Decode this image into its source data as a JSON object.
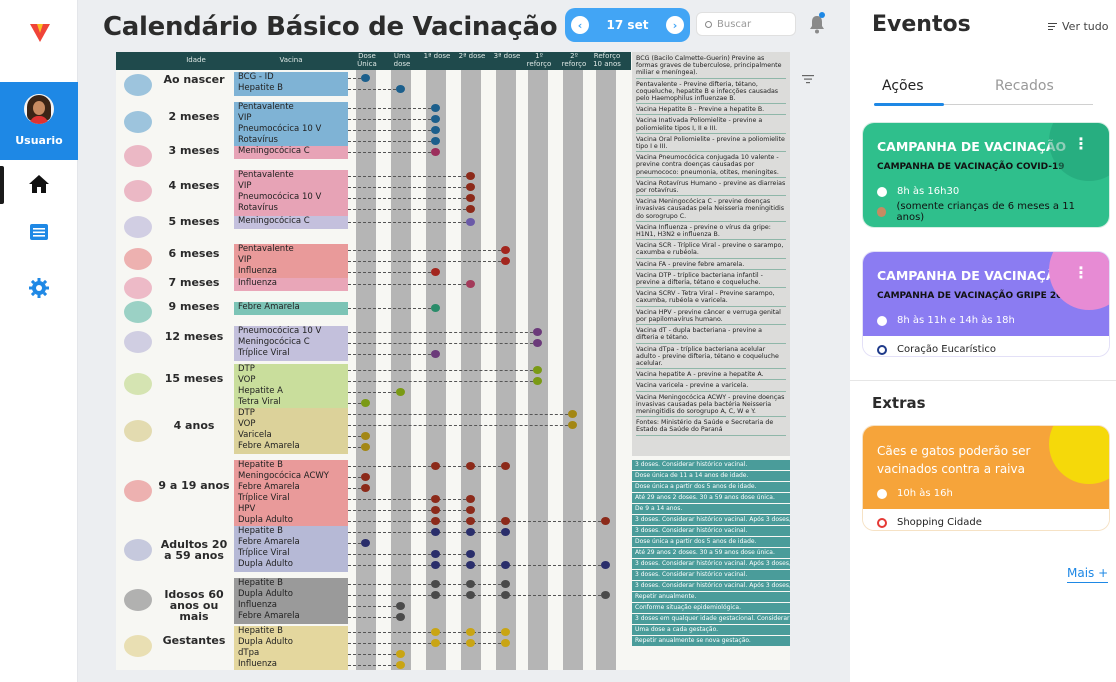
{
  "sidebar": {
    "user_label": "Usuario",
    "nav": [
      "home-icon",
      "list-icon",
      "settings-icon"
    ]
  },
  "header": {
    "title": "Calendário Básico de Vacinação",
    "date": "17 set",
    "search_placeholder": "Buscar"
  },
  "chart_headers": {
    "idade": "Idade",
    "vacina": "Vacina",
    "cols": [
      "Dose Única",
      "Uma dose",
      "1ª dose",
      "2ª dose",
      "3ª dose",
      "1º reforço",
      "2º reforço",
      "Reforço 10 anos"
    ]
  },
  "rows": [
    {
      "age": "Ao nascer",
      "vaccines": [
        "BCG - ID",
        "Hepatite B"
      ]
    },
    {
      "age": "2 meses",
      "vaccines": [
        "Pentavalente",
        "VIP",
        "Pneumocócica 10 V",
        "Rotavírus"
      ]
    },
    {
      "age": "3 meses",
      "vaccines": [
        "Meningocócica C"
      ]
    },
    {
      "age": "4 meses",
      "vaccines": [
        "Pentavalente",
        "VIP",
        "Pneumocócica 10 V",
        "Rotavírus"
      ]
    },
    {
      "age": "5 meses",
      "vaccines": [
        "Meningocócica C"
      ]
    },
    {
      "age": "6 meses",
      "vaccines": [
        "Pentavalente",
        "VIP",
        "Influenza"
      ]
    },
    {
      "age": "7 meses",
      "vaccines": [
        "Influenza"
      ]
    },
    {
      "age": "9 meses",
      "vaccines": [
        "Febre Amarela"
      ]
    },
    {
      "age": "12 meses",
      "vaccines": [
        "Pneumocócica 10 V",
        "Meningocócica C",
        "Tríplice Viral"
      ]
    },
    {
      "age": "15 meses",
      "vaccines": [
        "DTP",
        "VOP",
        "Hepatite A",
        "Tetra Viral"
      ]
    },
    {
      "age": "4 anos",
      "vaccines": [
        "DTP",
        "VOP",
        "Varicela",
        "Febre Amarela"
      ]
    },
    {
      "age": "9 a 19 anos",
      "vaccines": [
        "Hepatite B",
        "Meningocócica ACWY",
        "Febre Amarela",
        "Tríplice Viral",
        "HPV",
        "Dupla Adulto"
      ]
    },
    {
      "age": "Adultos 20 a 59 anos",
      "vaccines": [
        "Hepatite B",
        "Febre Amarela",
        "Tríplice Viral",
        "Dupla Adulto"
      ]
    },
    {
      "age": "Idosos 60 anos ou mais",
      "vaccines": [
        "Hepatite B",
        "Dupla Adulto",
        "Influenza",
        "Febre Amarela"
      ]
    },
    {
      "age": "Gestantes",
      "vaccines": [
        "Hepatite B",
        "Dupla Adulto",
        "dTpa",
        "Influenza"
      ]
    }
  ],
  "side_notes": [
    "BCG (Bacilo Calmette-Guerin) Previne as formas graves de tuberculose, principalmente miliar e meníngea).",
    "Pentavalente - Previne difteria, tétano, coqueluche, hepatite B e infecções causadas pelo Haemophilus influenzae B.",
    "Vacina Hepatite B - Previne a hepatite B.",
    "Vacina Inativada Poliomielite - previne a poliomielite tipos I, II e III.",
    "Vacina Oral Poliomielite - previne a poliomielite tipo I e III.",
    "Vacina Pneumocócica conjugada 10 valente - previne contra doenças causadas por pneumococo: pneumonia, otites, meningites.",
    "Vacina Rotavírus Humano - previne as diarreias por rotavírus.",
    "Vacina Meningocócica C - previne doenças invasivas causadas pela Neisseria meningitidis do sorogrupo C.",
    "Vacina Influenza - previne o vírus da gripe: H1N1, H3N2 e influenza B.",
    "Vacina SCR - Tríplice Viral - previne o sarampo, caxumba e rubéola.",
    "Vacina FA - previne febre amarela.",
    "Vacina DTP - tríplice bacteriana infantil - previne a difteria, tétano e coqueluche.",
    "Vacina SCRV - Tetra Viral - Previne sarampo, caxumba, rubéola e varicela.",
    "Vacina HPV - previne câncer e verruga genital por papilomavírus humano.",
    "Vacina dT - dupla bacteriana - previne a difteria e tétano.",
    "Vacina dTpa - tríplice bacteriana acelular adulto - previne difteria, tétano e coqueluche acelular.",
    "Vacina hepatite A - previne a hepatite A.",
    "Vacina varicela - previne a varicela.",
    "Vacina Meningocócica ACWY - previne doenças invasivas causadas pela bactéria Neisseria meningitidis do sorogrupo A, C, W e Y.",
    "Fontes: Ministério da Saúde e Secretaria de Estado da Saúde do Paraná"
  ],
  "notes": [
    "3 doses. Considerar histórico vacinal.",
    "Dose única de 11 a 14 anos de idade.",
    "Dose única a partir dos 5 anos de idade.",
    "Até 29 anos 2 doses. 30 a 59 anos dose única.",
    "De 9 a 14 anos.",
    "3 doses. Considerar histórico vacinal. Após 3 doses, reforço a cada 10 anos.",
    "3 doses. Considerar histórico vacinal.",
    "Dose única a partir dos 5 anos de idade.",
    "Até 29 anos 2 doses. 30 a 59 anos dose única.",
    "3 doses. Considerar histórico vacinal. Após 3 doses, reforço a cada 10 anos.",
    "3 doses. Considerar histórico vacinal.",
    "3 doses. Considerar histórico vacinal. Após 3 doses, reforço a cada 10 anos.",
    "Repetir anualmente.",
    "Conforme situação epidemiológica.",
    "3 doses em qualquer idade gestacional. Considerar histórico vacinal.",
    "Uma dose a cada gestação.",
    "Repetir anualmente se nova gestação."
  ],
  "right_panel": {
    "title": "Eventos",
    "ver_tudo": "Ver tudo",
    "tabs": [
      "Ações",
      "Recados"
    ],
    "cards": [
      {
        "title": "CAMPANHA DE VACINAÇÃO",
        "subtitle": "CAMPANHA DE VACINAÇÃO COVID-19",
        "time": "8h às 16h30",
        "detail": "(somente crianças de 6 meses a 11 anos)",
        "color": "#2fbf8c",
        "blob": "#1f9d73"
      },
      {
        "title": "CAMPANHA DE VACINAÇÃO",
        "subtitle": "CAMPANHA DE VACINAÇÃO GRIPE 2023",
        "time": "8h às 11h e 14h às 18h",
        "detail": "Coração Eucarístico",
        "color": "#8b7cf2",
        "blob": "#e78bd4"
      },
      {
        "title": "Cães e gatos poderão ser vacinados contra a raiva",
        "subtitle": "",
        "time": "10h às 16h",
        "detail": "Shopping Cidade",
        "color": "#f6a43a",
        "blob": "#f5d90a"
      }
    ],
    "extras_title": "Extras",
    "mais": "Mais +"
  }
}
